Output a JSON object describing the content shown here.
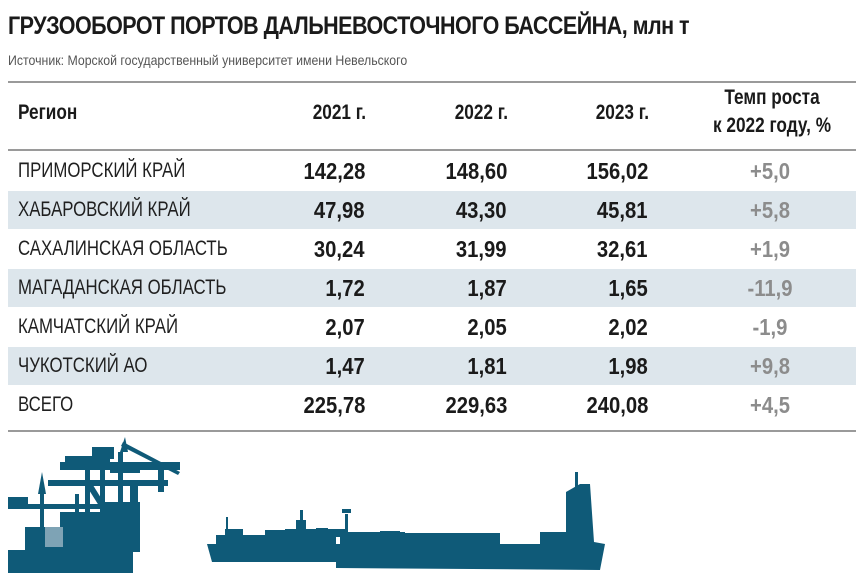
{
  "title": "ГРУЗООБОРОТ ПОРТОВ ДАЛЬНЕВОСТОЧНОГО БАССЕЙНА, млн т",
  "source": "Источник: Морской государственный университет имени Невельского",
  "colors": {
    "row_shade": "#dde6ec",
    "illustration": "#0f5a78",
    "growth_text": "#8c8c8c"
  },
  "chart_data": {
    "type": "table",
    "columns": [
      "Регион",
      "2021 г.",
      "2022 г.",
      "2023 г.",
      "Темп роста",
      "к 2022 году, %"
    ],
    "rows": [
      {
        "region": "ПРИМОРСКИЙ КРАЙ",
        "y2021": "142,28",
        "y2022": "148,60",
        "y2023": "156,02",
        "growth": "+5,0"
      },
      {
        "region": "ХАБАРОВСКИЙ КРАЙ",
        "y2021": "47,98",
        "y2022": "43,30",
        "y2023": "45,81",
        "growth": "+5,8"
      },
      {
        "region": "САХАЛИНСКАЯ ОБЛАСТЬ",
        "y2021": "30,24",
        "y2022": "31,99",
        "y2023": "32,61",
        "growth": "+1,9"
      },
      {
        "region": "МАГАДАНСКАЯ ОБЛАСТЬ",
        "y2021": "1,72",
        "y2022": "1,87",
        "y2023": "1,65",
        "growth": "-11,9"
      },
      {
        "region": "КАМЧАТСКИЙ КРАЙ",
        "y2021": "2,07",
        "y2022": "2,05",
        "y2023": "2,02",
        "growth": "-1,9"
      },
      {
        "region": "ЧУКОТСКИЙ АО",
        "y2021": "1,47",
        "y2022": "1,81",
        "y2023": "1,98",
        "growth": "+9,8"
      },
      {
        "region": "ВСЕГО",
        "y2021": "225,78",
        "y2022": "229,63",
        "y2023": "240,08",
        "growth": "+4,5"
      }
    ]
  },
  "illustration": [
    "port-crane-icon",
    "cargo-ship-icon"
  ]
}
